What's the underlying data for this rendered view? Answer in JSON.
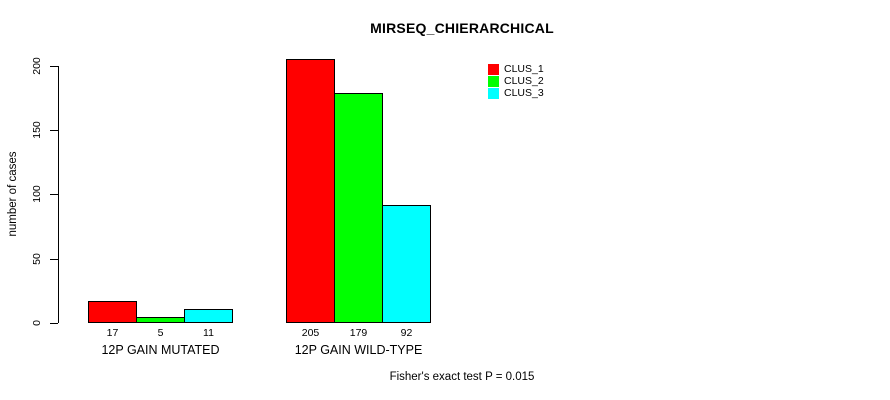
{
  "chart_data": {
    "type": "bar",
    "title": "MIRSEQ_CHIERARCHICAL",
    "categories": [
      "12P GAIN MUTATED",
      "12P GAIN WILD-TYPE"
    ],
    "series": [
      {
        "name": "CLUS_1",
        "color": "#ff0000",
        "values": [
          17,
          205
        ]
      },
      {
        "name": "CLUS_2",
        "color": "#00ff00",
        "values": [
          5,
          179
        ]
      },
      {
        "name": "CLUS_3",
        "color": "#00ffff",
        "values": [
          11,
          92
        ]
      }
    ],
    "ylabel": "number of cases",
    "xlabel": "",
    "yticks": [
      0,
      50,
      100,
      150,
      200
    ],
    "ylim": [
      0,
      210
    ],
    "grid": false,
    "bar_value_labels": true,
    "bar_border_color": "#000000",
    "background": "#ffffff",
    "legend": {
      "position": "top-right",
      "entries": [
        "CLUS_1",
        "CLUS_2",
        "CLUS_3"
      ]
    },
    "annotation": "Fisher's exact test P = 0.015"
  }
}
